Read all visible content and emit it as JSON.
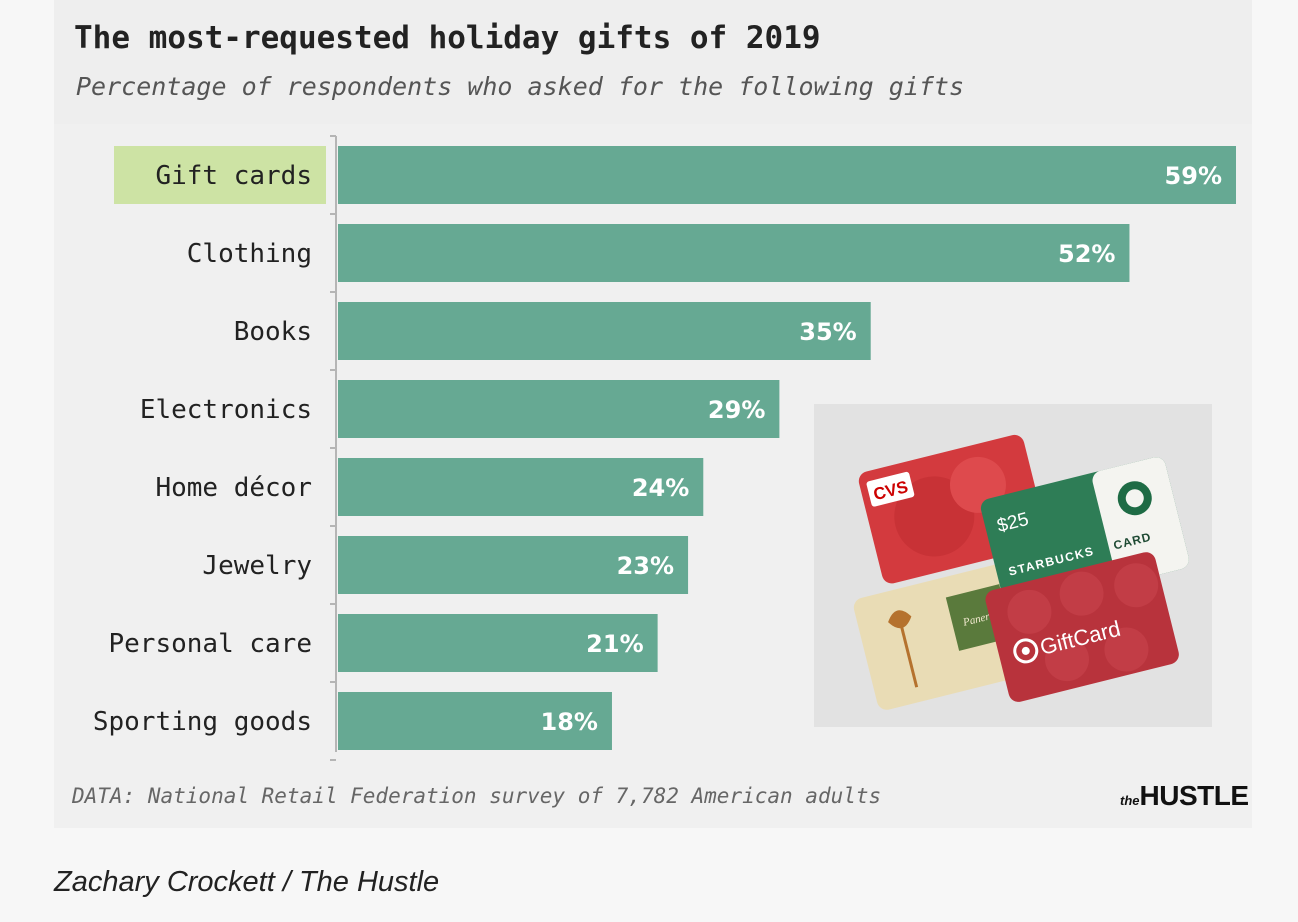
{
  "chart_data": {
    "type": "bar",
    "orientation": "horizontal",
    "title": "The most-requested holiday gifts of 2019",
    "subtitle": "Percentage of respondents who asked for the following gifts",
    "categories": [
      "Gift cards",
      "Clothing",
      "Books",
      "Electronics",
      "Home décor",
      "Jewelry",
      "Personal care",
      "Sporting goods"
    ],
    "values": [
      59,
      52,
      35,
      29,
      24,
      23,
      21,
      18
    ],
    "value_labels": [
      "59%",
      "52%",
      "35%",
      "29%",
      "24%",
      "23%",
      "21%",
      "18%"
    ],
    "highlighted_category": "Gift cards",
    "xlim": [
      0,
      59
    ],
    "xlabel": "",
    "ylabel": "",
    "grid": false,
    "colors": {
      "bar": "#66a993",
      "highlight": "#cde3a4",
      "axis": "#b5b5b5"
    },
    "source": "DATA: National Retail Federation survey of 7,782 American adults"
  },
  "photo": {
    "cards": {
      "cvs": "CVS",
      "starbucks_amount": "$25",
      "starbucks_name": "STARBUCKS",
      "starbucks_card": "CARD",
      "target": "GiftCard",
      "panera": "Panera"
    }
  },
  "branding": {
    "logo_prefix": "the",
    "logo_name": "HUSTLE"
  },
  "caption": "Zachary Crockett / The Hustle"
}
